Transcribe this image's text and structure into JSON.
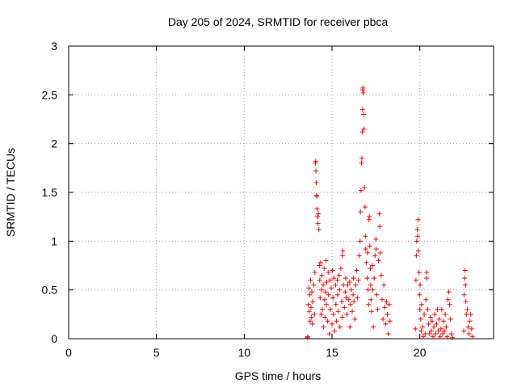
{
  "chart_data": {
    "type": "scatter",
    "title": "Day 205 of 2024, SRMTID for receiver pbca",
    "xlabel": "GPS time / hours",
    "ylabel": "SRMTID / TECUs",
    "xlim": [
      0,
      24.2
    ],
    "ylim": [
      0,
      3
    ],
    "xticks": [
      0,
      5,
      10,
      15,
      20
    ],
    "xtick_labels": [
      "0",
      "5",
      "10",
      "15",
      "20"
    ],
    "yticks": [
      0,
      0.5,
      1,
      1.5,
      2,
      2.5,
      3
    ],
    "ytick_labels": [
      "0",
      "0.5",
      "1",
      "1.5",
      "2",
      "2.5",
      "3"
    ],
    "grid": true,
    "marker": "+",
    "color": "#ff0000",
    "series": [
      {
        "name": "SRMTID",
        "points": [
          [
            13.6,
            0.01
          ],
          [
            13.62,
            0.02
          ],
          [
            13.65,
            0.35
          ],
          [
            13.68,
            0.52
          ],
          [
            13.7,
            0.28
          ],
          [
            13.72,
            0.45
          ],
          [
            13.75,
            0.18
          ],
          [
            13.78,
            0.6
          ],
          [
            13.8,
            0.32
          ],
          [
            13.82,
            0.22
          ],
          [
            13.85,
            0.48
          ],
          [
            13.88,
            0.15
          ],
          [
            13.9,
            0.38
          ],
          [
            13.95,
            0.55
          ],
          [
            14.0,
            0.25
          ],
          [
            14.02,
            0.68
          ],
          [
            14.05,
            1.8
          ],
          [
            14.07,
            1.82
          ],
          [
            14.08,
            1.72
          ],
          [
            14.1,
            1.6
          ],
          [
            14.12,
            1.47
          ],
          [
            14.14,
            1.46
          ],
          [
            14.15,
            1.33
          ],
          [
            14.18,
            1.25
          ],
          [
            14.2,
            1.18
          ],
          [
            14.22,
            1.28
          ],
          [
            14.25,
            1.12
          ],
          [
            14.28,
            0.75
          ],
          [
            14.3,
            0.6
          ],
          [
            14.32,
            0.42
          ],
          [
            14.35,
            0.78
          ],
          [
            14.38,
            0.25
          ],
          [
            14.4,
            0.5
          ],
          [
            14.42,
            0.65
          ],
          [
            14.45,
            0.3
          ],
          [
            14.5,
            0.55
          ],
          [
            14.52,
            0.12
          ],
          [
            14.55,
            0.72
          ],
          [
            14.58,
            0.4
          ],
          [
            14.6,
            0.22
          ],
          [
            14.62,
            0.48
          ],
          [
            14.65,
            0.8
          ],
          [
            14.68,
            0.35
          ],
          [
            14.7,
            0.58
          ],
          [
            14.75,
            0.18
          ],
          [
            14.78,
            0.68
          ],
          [
            14.8,
            0.45
          ],
          [
            14.85,
            0.05
          ],
          [
            14.88,
            0.6
          ],
          [
            14.9,
            0.3
          ],
          [
            14.95,
            0.52
          ],
          [
            15.0,
            0.15
          ],
          [
            15.02,
            0.7
          ],
          [
            15.05,
            0.42
          ],
          [
            15.08,
            0.25
          ],
          [
            15.1,
            0.62
          ],
          [
            15.15,
            0.08
          ],
          [
            15.2,
            0.55
          ],
          [
            15.22,
            0.35
          ],
          [
            15.25,
            0.18
          ],
          [
            15.3,
            0.6
          ],
          [
            15.32,
            0.45
          ],
          [
            15.35,
            0.28
          ],
          [
            15.4,
            0.65
          ],
          [
            15.42,
            0.5
          ],
          [
            15.45,
            0.12
          ],
          [
            15.5,
            0.72
          ],
          [
            15.55,
            0.38
          ],
          [
            15.58,
            0.22
          ],
          [
            15.6,
            0.85
          ],
          [
            15.62,
            0.9
          ],
          [
            15.65,
            0.55
          ],
          [
            15.7,
            0.32
          ],
          [
            15.75,
            0.48
          ],
          [
            15.78,
            0.62
          ],
          [
            15.8,
            0.42
          ],
          [
            15.85,
            0.25
          ],
          [
            15.9,
            0.55
          ],
          [
            15.95,
            0.4
          ],
          [
            16.0,
            0.58
          ],
          [
            16.02,
            0.12
          ],
          [
            16.05,
            0.35
          ],
          [
            16.1,
            0.5
          ],
          [
            16.15,
            0.28
          ],
          [
            16.2,
            0.45
          ],
          [
            16.22,
            0.62
          ],
          [
            16.25,
            0.38
          ],
          [
            16.3,
            0.2
          ],
          [
            16.35,
            0.55
          ],
          [
            16.4,
            0.7
          ],
          [
            16.45,
            0.42
          ],
          [
            16.5,
            0.6
          ],
          [
            16.55,
            0.85
          ],
          [
            16.6,
            1.0
          ],
          [
            16.62,
            1.3
          ],
          [
            16.65,
            1.52
          ],
          [
            16.68,
            1.8
          ],
          [
            16.7,
            1.85
          ],
          [
            16.72,
            2.12
          ],
          [
            16.74,
            2.35
          ],
          [
            16.75,
            2.55
          ],
          [
            16.76,
            2.57
          ],
          [
            16.78,
            2.52
          ],
          [
            16.8,
            2.3
          ],
          [
            16.82,
            2.15
          ],
          [
            16.85,
            1.55
          ],
          [
            16.88,
            1.35
          ],
          [
            16.9,
            1.05
          ],
          [
            16.92,
            0.92
          ],
          [
            16.95,
            0.78
          ],
          [
            17.0,
            0.62
          ],
          [
            17.02,
            0.88
          ],
          [
            17.05,
            0.5
          ],
          [
            17.08,
            0.35
          ],
          [
            17.1,
            1.22
          ],
          [
            17.12,
            1.25
          ],
          [
            17.15,
            0.95
          ],
          [
            17.18,
            0.72
          ],
          [
            17.2,
            0.55
          ],
          [
            17.22,
            0.4
          ],
          [
            17.25,
            0.28
          ],
          [
            17.3,
            0.75
          ],
          [
            17.32,
            0.5
          ],
          [
            17.35,
            0.12
          ],
          [
            17.4,
            0.62
          ],
          [
            17.45,
            0.85
          ],
          [
            17.5,
            1.02
          ],
          [
            17.52,
            0.92
          ],
          [
            17.55,
            0.45
          ],
          [
            17.6,
            0.3
          ],
          [
            17.65,
            0.8
          ],
          [
            17.7,
            1.28
          ],
          [
            17.72,
            1.15
          ],
          [
            17.75,
            0.88
          ],
          [
            17.8,
            0.65
          ],
          [
            17.85,
            0.4
          ],
          [
            17.9,
            0.2
          ],
          [
            17.95,
            0.55
          ],
          [
            18.0,
            0.32
          ],
          [
            18.05,
            0.15
          ],
          [
            18.1,
            0.38
          ],
          [
            18.15,
            0.25
          ],
          [
            18.2,
            0.05
          ],
          [
            18.25,
            0.35
          ],
          [
            18.3,
            0.18
          ],
          [
            19.75,
            0.1
          ],
          [
            19.78,
            0.6
          ],
          [
            19.8,
            0.85
          ],
          [
            19.82,
            1.0
          ],
          [
            19.85,
            1.12
          ],
          [
            19.88,
            1.05
          ],
          [
            19.9,
            1.22
          ],
          [
            19.92,
            0.9
          ],
          [
            19.95,
            0.68
          ],
          [
            19.98,
            0.45
          ],
          [
            20.0,
            0.3
          ],
          [
            20.02,
            0.55
          ],
          [
            20.05,
            0.2
          ],
          [
            20.08,
            0.08
          ],
          [
            20.1,
            0.35
          ],
          [
            20.15,
            0.12
          ],
          [
            20.2,
            0.02
          ],
          [
            20.25,
            0.25
          ],
          [
            20.3,
            0.05
          ],
          [
            20.35,
            0.4
          ],
          [
            20.38,
            0.62
          ],
          [
            20.4,
            0.68
          ],
          [
            20.45,
            0.3
          ],
          [
            20.5,
            0.15
          ],
          [
            20.55,
            0.05
          ],
          [
            20.6,
            0.22
          ],
          [
            20.65,
            0.08
          ],
          [
            20.7,
            0.18
          ],
          [
            20.75,
            0.02
          ],
          [
            20.8,
            0.12
          ],
          [
            20.85,
            0.25
          ],
          [
            20.9,
            0.05
          ],
          [
            20.95,
            0.15
          ],
          [
            21.0,
            0.3
          ],
          [
            21.05,
            0.08
          ],
          [
            21.1,
            0.2
          ],
          [
            21.15,
            0.02
          ],
          [
            21.2,
            0.1
          ],
          [
            21.25,
            0.3
          ],
          [
            21.3,
            0.05
          ],
          [
            21.35,
            0.18
          ],
          [
            21.4,
            0.08
          ],
          [
            21.45,
            0.25
          ],
          [
            21.5,
            0.12
          ],
          [
            21.55,
            0.02
          ],
          [
            21.6,
            0.4
          ],
          [
            21.65,
            0.48
          ],
          [
            21.7,
            0.35
          ],
          [
            21.75,
            0.2
          ],
          [
            21.8,
            0.05
          ],
          [
            21.85,
            0.01
          ],
          [
            22.5,
            0.08
          ],
          [
            22.52,
            0.45
          ],
          [
            22.55,
            0.62
          ],
          [
            22.58,
            0.7
          ],
          [
            22.6,
            0.55
          ],
          [
            22.62,
            0.38
          ],
          [
            22.65,
            0.25
          ],
          [
            22.7,
            0.3
          ],
          [
            22.75,
            0.12
          ],
          [
            22.8,
            0.05
          ],
          [
            22.85,
            0.18
          ],
          [
            22.9,
            0.25
          ],
          [
            22.95,
            0.1
          ],
          [
            23.0,
            0.02
          ]
        ]
      }
    ]
  }
}
